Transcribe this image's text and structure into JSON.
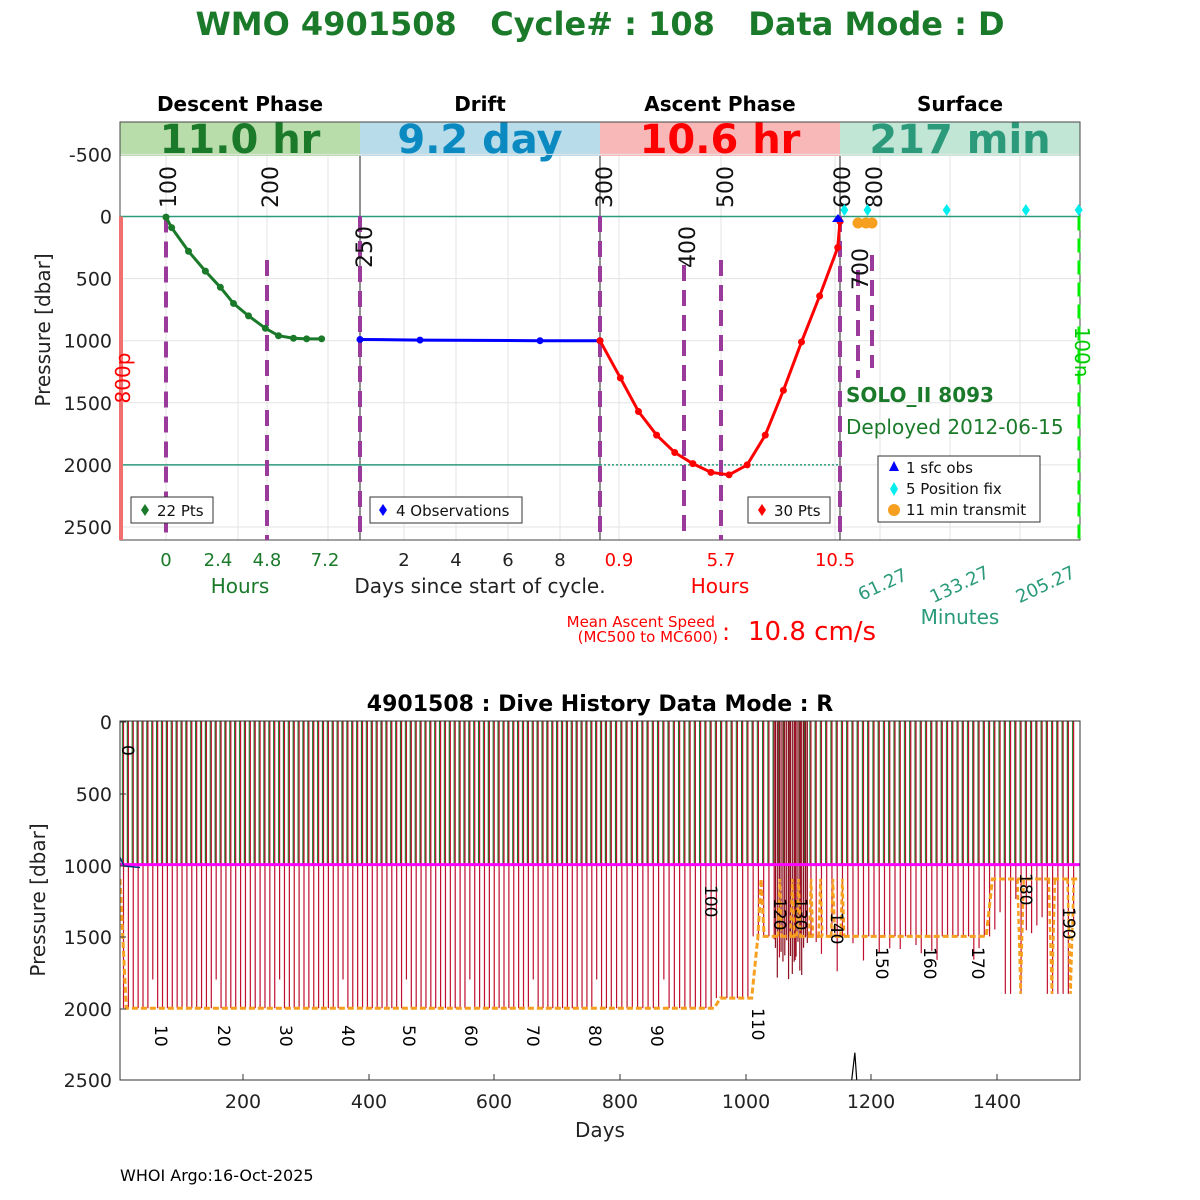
{
  "title": "WMO 4901508   Cycle# : 108   Data Mode : D",
  "colors": {
    "green": "#1a7a2a",
    "blue": "#0000ff",
    "red": "#ff0000",
    "teal": "#2a9a7a",
    "purple": "#9a3a9a",
    "orange": "#f7a020",
    "cyan": "#00ffff",
    "magenta": "#ff00ff",
    "darkred": "#c01030"
  },
  "chart_data": [
    {
      "type": "line",
      "phases": [
        {
          "label": "Descent Phase",
          "value": "11.0 hr",
          "bg": "#b8dcaa",
          "fg": "#1a7a2a"
        },
        {
          "label": "Drift",
          "value": "9.2 day",
          "bg": "#b8dcea",
          "fg": "#0a8ac0"
        },
        {
          "label": "Ascent Phase",
          "value": "10.6 hr",
          "bg": "#f9b8b8",
          "fg": "#ff0000"
        },
        {
          "label": "Surface",
          "value": "217 min",
          "bg": "#c2e6d6",
          "fg": "#2a9a7a"
        }
      ],
      "ylabel": "Pressure [dbar]",
      "ylim": [
        -750,
        2600
      ],
      "yticks": [
        "-500",
        "0",
        "500",
        "1000",
        "1500",
        "2000",
        "2500"
      ],
      "xticks": {
        "descent": [
          "0",
          "2.4",
          "4.8",
          "7.2"
        ],
        "drift": [
          "2",
          "4",
          "6",
          "8"
        ],
        "ascent": [
          "0.9",
          "5.7",
          "10.5"
        ],
        "surface": [
          "61.27",
          "133.27",
          "205.27"
        ]
      },
      "xlabels": {
        "descent": "Hours",
        "drift": "Days since start of cycle.",
        "ascent": "Hours",
        "surface": "Minutes"
      },
      "mc_labels": [
        "100",
        "200",
        "250",
        "300",
        "400",
        "500",
        "600",
        "700",
        "800"
      ],
      "side_labels": {
        "left": "800p",
        "right": "100n"
      },
      "series": [
        {
          "name": "22 Pts",
          "phase": "descent",
          "color": "#1a7a2a",
          "x": [
            0,
            0.3,
            1.2,
            2.1,
            2.9,
            3.6,
            4.4,
            5.3,
            6.0,
            6.8,
            7.5,
            8.3
          ],
          "y": [
            5,
            90,
            280,
            440,
            570,
            700,
            800,
            900,
            960,
            980,
            985,
            985
          ]
        },
        {
          "name": "4 Observations",
          "phase": "drift",
          "color": "#0000ff",
          "x": [
            0,
            2.3,
            6.9,
            9.2
          ],
          "y": [
            990,
            995,
            1000,
            1000
          ]
        },
        {
          "name": "30 Pts",
          "phase": "ascent",
          "color": "#ff0000",
          "x": [
            0,
            0.9,
            1.7,
            2.5,
            3.3,
            4.1,
            4.9,
            5.7,
            6.5,
            7.3,
            8.1,
            8.9,
            9.7,
            10.5,
            10.6
          ],
          "y": [
            1000,
            1300,
            1570,
            1760,
            1900,
            1990,
            2060,
            2080,
            2000,
            1760,
            1400,
            1010,
            640,
            250,
            40
          ]
        }
      ],
      "surface_legend": [
        "1 sfc obs",
        "5 Position fix",
        "11 min transmit"
      ],
      "surface_fix_minutes": [
        4,
        25,
        97,
        169,
        217
      ],
      "float_type": "SOLO_II 8093",
      "deployed": "Deployed 2012-06-15",
      "ascent_speed_label": "Mean Ascent Speed",
      "ascent_speed_sub": "(MC500 to MC600)",
      "ascent_speed_colon": ":",
      "ascent_speed_value": "10.8 cm/s"
    },
    {
      "type": "line",
      "title": "4901508 : Dive History      Data Mode : R",
      "xlabel": "Days",
      "ylabel": "Pressure [dbar]",
      "xlim": [
        0,
        1535
      ],
      "ylim": [
        0,
        2500
      ],
      "xticks": [
        "200",
        "400",
        "600",
        "800",
        "1000",
        "1200",
        "1400"
      ],
      "yticks": [
        "0",
        "500",
        "1000",
        "1500",
        "2000",
        "2500"
      ],
      "cycle_labels": [
        "0",
        "10",
        "20",
        "30",
        "40",
        "50",
        "60",
        "70",
        "80",
        "90",
        "100",
        "110",
        "120",
        "130",
        "140",
        "150",
        "160",
        "170",
        "180",
        "190"
      ],
      "profile_depth_series": {
        "name": "",
        "x": [
          0,
          10,
          950,
          960,
          1010,
          1020,
          1025,
          1030,
          1385,
          1395,
          1535
        ],
        "y": [
          1100,
          2000,
          2000,
          1930,
          1930,
          1500,
          1100,
          1500,
          1500,
          1100,
          1100
        ]
      },
      "park_depth": 1000
    }
  ],
  "footer": "WHOI Argo:16-Oct-2025"
}
